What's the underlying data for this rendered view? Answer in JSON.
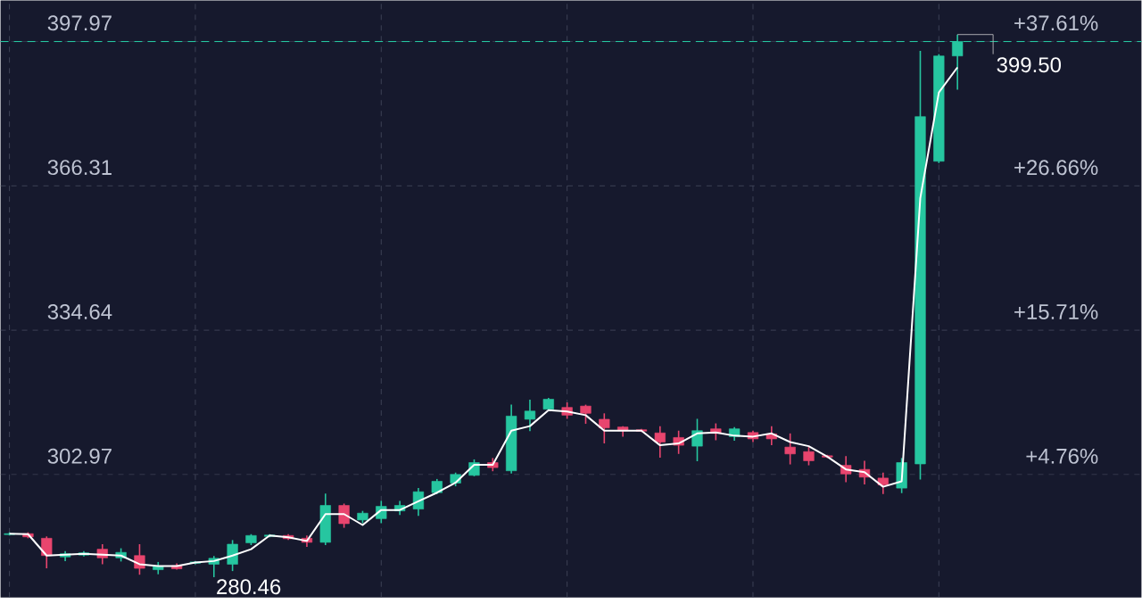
{
  "chart_data": {
    "type": "candlestick",
    "categories": [
      null,
      null,
      null,
      null,
      null,
      null,
      null,
      null,
      null,
      null,
      null,
      null,
      null,
      null,
      null,
      null,
      null,
      null,
      null,
      null,
      null,
      null,
      null,
      null,
      null,
      null,
      null,
      null,
      null,
      null,
      null,
      null,
      null,
      null,
      null,
      null,
      null,
      null,
      null,
      null,
      null,
      null,
      null,
      null,
      null,
      null,
      null,
      null,
      null,
      null,
      null,
      null
    ],
    "ohlc": [
      [
        289.8,
        290.3,
        289.6,
        290.0
      ],
      [
        290.0,
        290.3,
        289.0,
        289.3
      ],
      [
        289.0,
        289.4,
        282.4,
        285.2
      ],
      [
        284.9,
        286.2,
        284.0,
        285.6
      ],
      [
        285.3,
        286.2,
        285.0,
        285.8
      ],
      [
        286.6,
        287.7,
        283.3,
        284.7
      ],
      [
        284.7,
        286.8,
        283.9,
        285.9
      ],
      [
        285.2,
        287.7,
        281.0,
        282.4
      ],
      [
        282.1,
        283.8,
        281.1,
        282.9
      ],
      [
        283.0,
        283.5,
        282.1,
        282.3
      ],
      [
        283.5,
        284.0,
        283.3,
        283.8
      ],
      [
        283.3,
        285.1,
        280.46,
        284.6
      ],
      [
        283.3,
        288.6,
        281.8,
        287.7
      ],
      [
        288.0,
        289.9,
        287.5,
        289.6
      ],
      [
        289.4,
        289.9,
        289.2,
        289.7
      ],
      [
        289.6,
        289.9,
        288.6,
        288.9
      ],
      [
        289.0,
        289.6,
        287.1,
        288.1
      ],
      [
        288.1,
        298.8,
        287.5,
        296.2
      ],
      [
        296.2,
        296.6,
        291.3,
        292.2
      ],
      [
        293.0,
        295.0,
        292.3,
        294.5
      ],
      [
        293.3,
        297.2,
        292.3,
        296.0
      ],
      [
        295.0,
        297.2,
        294.1,
        296.2
      ],
      [
        295.4,
        300.0,
        293.9,
        299.2
      ],
      [
        299.0,
        302.0,
        298.7,
        301.5
      ],
      [
        301.1,
        303.4,
        300.4,
        303.0
      ],
      [
        302.8,
        306.3,
        302.6,
        305.6
      ],
      [
        305.6,
        306.6,
        303.7,
        304.5
      ],
      [
        303.8,
        318.3,
        303.2,
        315.8
      ],
      [
        315.1,
        319.4,
        312.5,
        316.9
      ],
      [
        317.3,
        319.8,
        316.9,
        319.5
      ],
      [
        317.7,
        318.8,
        315.2,
        316.0
      ],
      [
        318.0,
        318.3,
        314.1,
        316.4
      ],
      [
        315.1,
        316.4,
        309.8,
        313.2
      ],
      [
        313.4,
        313.6,
        311.3,
        312.6
      ],
      [
        312.8,
        313.0,
        312.3,
        312.5
      ],
      [
        312.1,
        313.6,
        306.7,
        310.1
      ],
      [
        311.1,
        312.6,
        307.5,
        309.4
      ],
      [
        309.2,
        315.2,
        305.9,
        312.6
      ],
      [
        313.0,
        314.2,
        310.5,
        312.0
      ],
      [
        311.3,
        313.4,
        310.4,
        313.0
      ],
      [
        312.2,
        312.6,
        310.1,
        310.8
      ],
      [
        311.9,
        313.6,
        309.4,
        310.8
      ],
      [
        309.0,
        312.0,
        305.2,
        307.5
      ],
      [
        308.0,
        309.0,
        305.0,
        306.0
      ],
      [
        307.1,
        307.3,
        306.6,
        306.8
      ],
      [
        305.0,
        307.0,
        301.3,
        303.1
      ],
      [
        304.1,
        306.0,
        300.8,
        302.4
      ],
      [
        302.2,
        303.4,
        298.7,
        300.7
      ],
      [
        300.0,
        306.6,
        298.9,
        305.6
      ],
      [
        305.3,
        395.9,
        301.9,
        381.5
      ],
      [
        371.7,
        395.2,
        371.3,
        394.8
      ],
      [
        394.8,
        399.5,
        387.4,
        397.97
      ]
    ],
    "colors": [
      "#26c6a0",
      "#e8456e",
      "#e8456e",
      "#26c6a0",
      "#26c6a0",
      "#e8456e",
      "#26c6a0",
      "#e8456e",
      "#26c6a0",
      "#e8456e",
      "#26c6a0",
      "#26c6a0",
      "#26c6a0",
      "#26c6a0",
      "#26c6a0",
      "#e8456e",
      "#e8456e",
      "#26c6a0",
      "#e8456e",
      "#26c6a0",
      "#26c6a0",
      "#26c6a0",
      "#26c6a0",
      "#26c6a0",
      "#26c6a0",
      "#26c6a0",
      "#e8456e",
      "#26c6a0",
      "#26c6a0",
      "#26c6a0",
      "#e8456e",
      "#e8456e",
      "#e8456e",
      "#e8456e",
      "#e8456e",
      "#e8456e",
      "#e8456e",
      "#26c6a0",
      "#e8456e",
      "#26c6a0",
      "#e8456e",
      "#e8456e",
      "#e8456e",
      "#e8456e",
      "#e8456e",
      "#e8456e",
      "#e8456e",
      "#e8456e",
      "#26c6a0",
      "#26c6a0",
      "#26c6a0",
      "#26c6a0"
    ],
    "series": [
      {
        "type": "line",
        "color": "#ffffff",
        "values": [
          290.0,
          289.9,
          285.2,
          285.4,
          285.6,
          285.4,
          285.2,
          283.3,
          282.9,
          282.9,
          283.7,
          284.0,
          285.2,
          286.6,
          289.6,
          289.2,
          288.4,
          294.3,
          294.3,
          291.9,
          295.2,
          295.2,
          297.1,
          299.0,
          301.2,
          305.1,
          305.1,
          312.6,
          313.6,
          317.1,
          316.8,
          316.0,
          312.6,
          312.6,
          312.6,
          309.4,
          309.8,
          312.0,
          312.2,
          311.5,
          311.3,
          312.0,
          310.1,
          309.2,
          306.9,
          304.1,
          303.5,
          300.3,
          301.5,
          363.6,
          386.8,
          392.3
        ]
      }
    ],
    "ylim": [
      276,
      407
    ],
    "yticks": [
      302.97,
      334.64,
      366.31,
      397.97
    ],
    "y2lim": [
      -4.56,
      40.73
    ],
    "y2ticks": [
      {
        "value": 4.76,
        "label": "+4.76%"
      },
      {
        "value": 15.71,
        "label": "+15.71%"
      },
      {
        "value": 26.66,
        "label": "+26.66%"
      },
      {
        "value": 37.61,
        "label": "+37.61%"
      }
    ],
    "ref_lines": [
      {
        "axis": "y",
        "value": 397.97,
        "color": "#26c6a0",
        "line_style": "dashed"
      }
    ],
    "annotations": [
      "399.50",
      "280.46"
    ],
    "grid": true,
    "tick_labels": "y"
  }
}
